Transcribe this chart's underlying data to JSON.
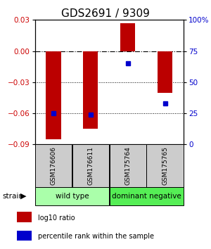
{
  "title": "GDS2691 / 9309",
  "samples": [
    "GSM176606",
    "GSM176611",
    "GSM175764",
    "GSM175765"
  ],
  "log10_ratio": [
    -0.085,
    -0.075,
    0.027,
    -0.04
  ],
  "percentile_rank": [
    25,
    24,
    65,
    33
  ],
  "ylim_left": [
    -0.09,
    0.03
  ],
  "ylim_right": [
    0,
    100
  ],
  "yticks_left": [
    -0.09,
    -0.06,
    -0.03,
    0,
    0.03
  ],
  "yticks_right": [
    0,
    25,
    50,
    75,
    100
  ],
  "ytick_labels_right": [
    "0",
    "25",
    "50",
    "75",
    "100%"
  ],
  "hline_zero": 0,
  "hlines_dotted": [
    -0.03,
    -0.06
  ],
  "bar_color": "#bb0000",
  "point_color": "#0000cc",
  "bar_width": 0.4,
  "groups": [
    {
      "label": "wild type",
      "samples_idx": [
        0,
        1
      ],
      "color": "#aaffaa"
    },
    {
      "label": "dominant negative",
      "samples_idx": [
        2,
        3
      ],
      "color": "#55ee55"
    }
  ],
  "strain_label": "strain",
  "legend_bar_label": "log10 ratio",
  "legend_point_label": "percentile rank within the sample",
  "background_color": "#ffffff",
  "title_fontsize": 11,
  "tick_label_color_left": "#cc0000",
  "tick_label_color_right": "#0000cc",
  "sample_box_color": "#cccccc",
  "point_size": 4
}
